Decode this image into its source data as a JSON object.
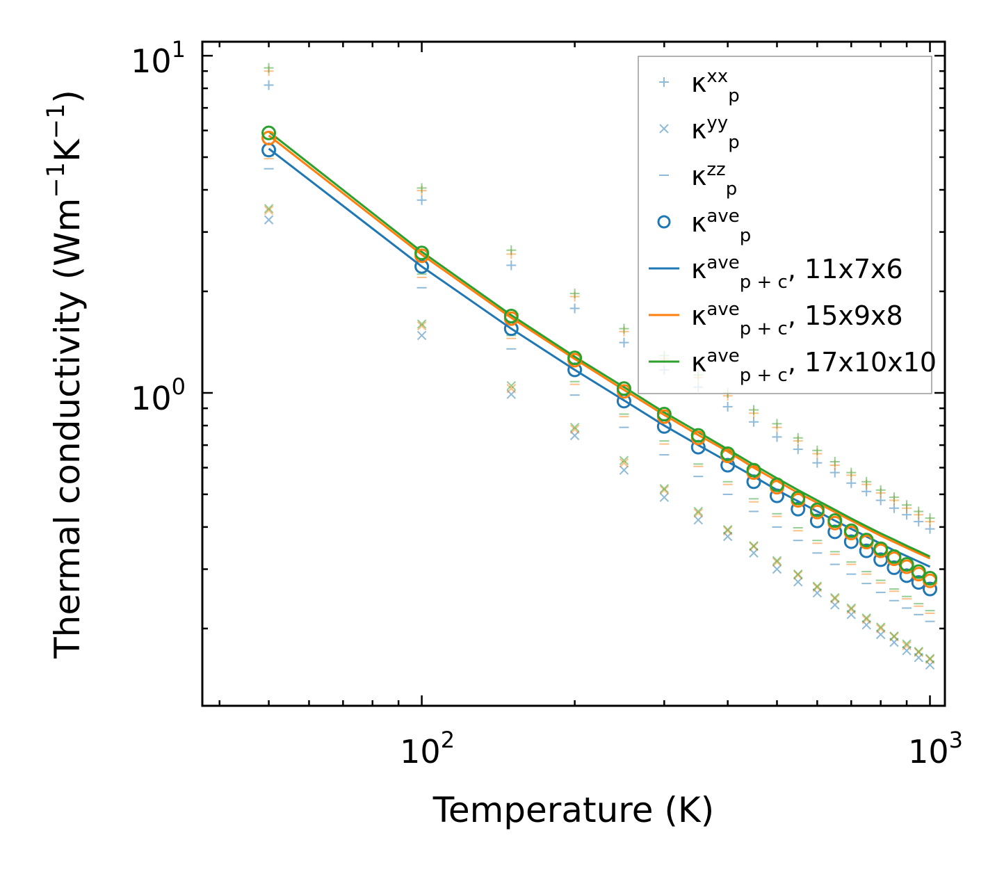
{
  "chart_data": {
    "type": "scatter",
    "title": "",
    "xlabel": "Temperature (K)",
    "ylabel": "Thermal conductivity (Wm",
    "ylabel_sup1": "−1",
    "ylabel_mid": "K",
    "ylabel_sup2": "−1",
    "ylabel_end": ")",
    "xscale": "log",
    "yscale": "log",
    "xlim": [
      37,
      1070
    ],
    "ylim": [
      0.118,
      11.0
    ],
    "xticks": [
      {
        "base": "10",
        "exp": "2",
        "value": 100
      },
      {
        "base": "10",
        "exp": "3",
        "value": 1000
      }
    ],
    "yticks": [
      {
        "base": "10",
        "exp": "0",
        "value": 1
      },
      {
        "base": "10",
        "exp": "1",
        "value": 10
      }
    ],
    "legend_position": "top-right",
    "colors": {
      "blue": "#1f77b4",
      "orange": "#ff7f0e",
      "green": "#2ca02c"
    },
    "x": [
      50,
      100,
      150,
      200,
      250,
      300,
      350,
      400,
      450,
      500,
      550,
      600,
      650,
      700,
      750,
      800,
      850,
      900,
      950,
      1000
    ],
    "series": [
      {
        "name": "xx",
        "marker": "plus",
        "color": "blue",
        "values": [
          8.18,
          3.73,
          2.39,
          1.78,
          1.41,
          1.17,
          1.04,
          0.91,
          0.82,
          0.74,
          0.68,
          0.62,
          0.58,
          0.54,
          0.51,
          0.48,
          0.455,
          0.435,
          0.415,
          0.395
        ]
      },
      {
        "name": "xx",
        "marker": "plus",
        "color": "orange",
        "values": [
          9.0,
          3.98,
          2.58,
          1.93,
          1.52,
          1.26,
          1.11,
          0.98,
          0.87,
          0.79,
          0.72,
          0.66,
          0.61,
          0.57,
          0.535,
          0.505,
          0.48,
          0.455,
          0.435,
          0.415
        ]
      },
      {
        "name": "xx",
        "marker": "plus",
        "color": "green",
        "values": [
          9.2,
          4.05,
          2.65,
          1.97,
          1.55,
          1.29,
          1.13,
          1.0,
          0.89,
          0.81,
          0.735,
          0.675,
          0.625,
          0.58,
          0.545,
          0.515,
          0.49,
          0.465,
          0.445,
          0.425
        ]
      },
      {
        "name": "yy",
        "marker": "cross",
        "color": "blue",
        "values": [
          3.26,
          1.48,
          0.99,
          0.747,
          0.59,
          0.49,
          0.42,
          0.375,
          0.335,
          0.3,
          0.275,
          0.255,
          0.235,
          0.22,
          0.205,
          0.192,
          0.182,
          0.172,
          0.164,
          0.156
        ]
      },
      {
        "name": "yy",
        "marker": "cross",
        "color": "orange",
        "values": [
          3.48,
          1.58,
          1.03,
          0.78,
          0.62,
          0.515,
          0.44,
          0.39,
          0.35,
          0.315,
          0.288,
          0.265,
          0.245,
          0.228,
          0.213,
          0.2,
          0.189,
          0.178,
          0.17,
          0.162
        ]
      },
      {
        "name": "yy",
        "marker": "cross",
        "color": "green",
        "values": [
          3.52,
          1.6,
          1.05,
          0.79,
          0.63,
          0.52,
          0.445,
          0.393,
          0.352,
          0.318,
          0.29,
          0.267,
          0.247,
          0.23,
          0.215,
          0.202,
          0.19,
          0.18,
          0.171,
          0.163
        ]
      },
      {
        "name": "zz",
        "marker": "dash",
        "color": "blue",
        "values": [
          4.62,
          2.05,
          1.35,
          0.985,
          0.79,
          0.655,
          0.565,
          0.5,
          0.445,
          0.4,
          0.365,
          0.335,
          0.31,
          0.29,
          0.272,
          0.256,
          0.242,
          0.23,
          0.22,
          0.21
        ]
      },
      {
        "name": "zz",
        "marker": "dash",
        "color": "orange",
        "values": [
          4.95,
          2.2,
          1.45,
          1.06,
          0.85,
          0.705,
          0.605,
          0.535,
          0.475,
          0.43,
          0.39,
          0.358,
          0.332,
          0.31,
          0.29,
          0.273,
          0.258,
          0.245,
          0.233,
          0.222
        ]
      },
      {
        "name": "zz",
        "marker": "dash",
        "color": "green",
        "values": [
          5.05,
          2.25,
          1.48,
          1.08,
          0.865,
          0.72,
          0.615,
          0.545,
          0.485,
          0.438,
          0.398,
          0.365,
          0.338,
          0.315,
          0.295,
          0.278,
          0.262,
          0.249,
          0.237,
          0.226
        ]
      },
      {
        "name": "ave",
        "marker": "circle",
        "color": "blue",
        "values": [
          5.25,
          2.37,
          1.55,
          1.17,
          0.945,
          0.795,
          0.69,
          0.61,
          0.545,
          0.495,
          0.452,
          0.417,
          0.387,
          0.362,
          0.34,
          0.32,
          0.303,
          0.287,
          0.274,
          0.262
        ]
      },
      {
        "name": "ave",
        "marker": "circle",
        "color": "orange",
        "values": [
          5.7,
          2.55,
          1.66,
          1.25,
          1.01,
          0.85,
          0.735,
          0.65,
          0.58,
          0.525,
          0.48,
          0.443,
          0.411,
          0.384,
          0.361,
          0.34,
          0.322,
          0.305,
          0.29,
          0.277
        ]
      },
      {
        "name": "ave",
        "marker": "circle",
        "color": "green",
        "values": [
          5.9,
          2.6,
          1.69,
          1.27,
          1.03,
          0.865,
          0.748,
          0.66,
          0.59,
          0.534,
          0.488,
          0.45,
          0.418,
          0.39,
          0.366,
          0.345,
          0.327,
          0.31,
          0.295,
          0.282
        ]
      },
      {
        "name": "11x7x6",
        "marker": "line",
        "color": "blue",
        "values": [
          5.3,
          2.37,
          1.55,
          1.17,
          0.95,
          0.8,
          0.7,
          0.625,
          0.565,
          0.515,
          0.477,
          0.445,
          0.418,
          0.395,
          0.375,
          0.357,
          0.341,
          0.328,
          0.316,
          0.305
        ]
      },
      {
        "name": "15x9x8",
        "marker": "line",
        "color": "orange",
        "values": [
          5.8,
          2.57,
          1.67,
          1.26,
          1.02,
          0.86,
          0.75,
          0.67,
          0.6,
          0.548,
          0.505,
          0.472,
          0.443,
          0.418,
          0.396,
          0.377,
          0.361,
          0.347,
          0.334,
          0.323
        ]
      },
      {
        "name": "17x10x10",
        "marker": "line",
        "color": "green",
        "values": [
          5.95,
          2.62,
          1.7,
          1.28,
          1.04,
          0.875,
          0.765,
          0.68,
          0.612,
          0.558,
          0.515,
          0.48,
          0.45,
          0.424,
          0.402,
          0.383,
          0.367,
          0.352,
          0.339,
          0.327
        ]
      }
    ],
    "legend": [
      {
        "marker": "plus",
        "color": "blue",
        "base": "κ",
        "sup": "xx",
        "sub": "p",
        "suffix": ""
      },
      {
        "marker": "cross",
        "color": "blue",
        "base": "κ",
        "sup": "yy",
        "sub": "p",
        "suffix": ""
      },
      {
        "marker": "dash",
        "color": "blue",
        "base": "κ",
        "sup": "zz",
        "sub": "p",
        "suffix": ""
      },
      {
        "marker": "circle",
        "color": "blue",
        "base": "κ",
        "sup": "ave",
        "sub": "p",
        "suffix": ""
      },
      {
        "marker": "line",
        "color": "blue",
        "base": "κ",
        "sup": "ave",
        "sub": "p + c",
        "suffix": ", 11x7x6"
      },
      {
        "marker": "line",
        "color": "orange",
        "base": "κ",
        "sup": "ave",
        "sub": "p + c",
        "suffix": ", 15x9x8"
      },
      {
        "marker": "line",
        "color": "green",
        "base": "κ",
        "sup": "ave",
        "sub": "p + c",
        "suffix": ", 17x10x10"
      }
    ]
  }
}
